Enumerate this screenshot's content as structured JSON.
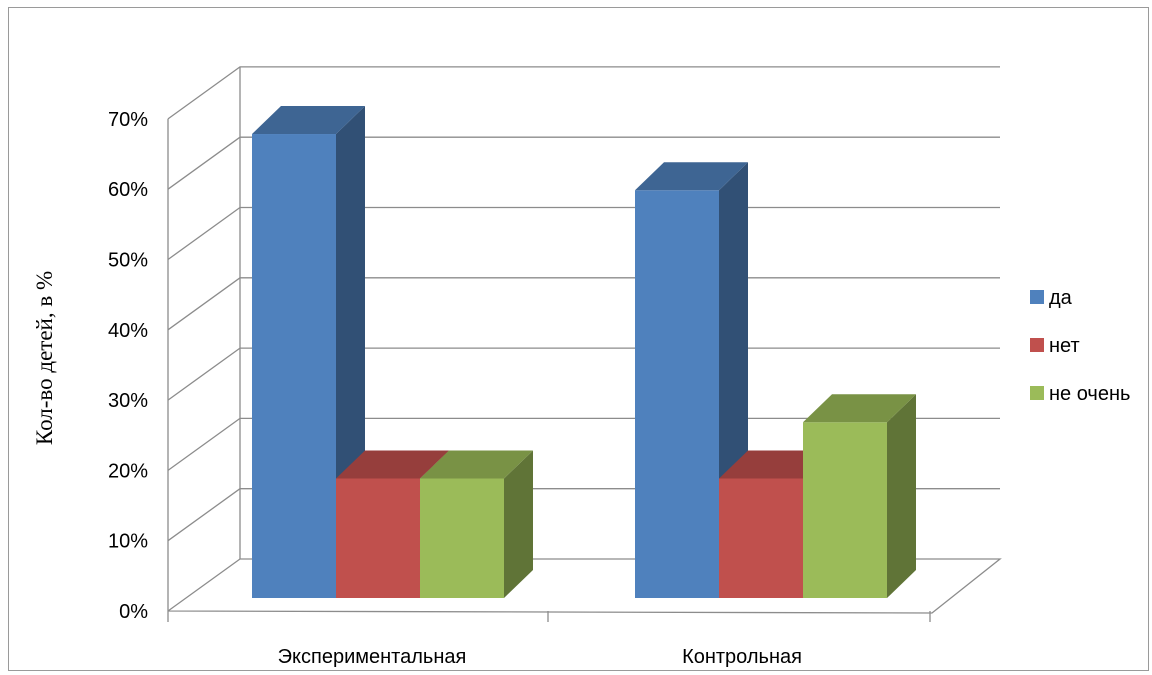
{
  "chart_data": {
    "type": "bar",
    "style": "3d-clustered-column",
    "title": "",
    "xlabel": "",
    "ylabel": "Кол-во детей, в %",
    "ylim": [
      0,
      70
    ],
    "yticks": [
      "0%",
      "10%",
      "20%",
      "30%",
      "40%",
      "50%",
      "60%",
      "70%"
    ],
    "categories": [
      "Экспериментальная",
      "Контрольная"
    ],
    "series": [
      {
        "name": "да",
        "values": [
          66,
          58
        ],
        "color": "#4f81bd"
      },
      {
        "name": "нет",
        "values": [
          17,
          17
        ],
        "color": "#c0504d"
      },
      {
        "name": "не очень",
        "values": [
          17,
          25
        ],
        "color": "#9bbb59"
      }
    ],
    "grid": true,
    "legend": "right"
  }
}
